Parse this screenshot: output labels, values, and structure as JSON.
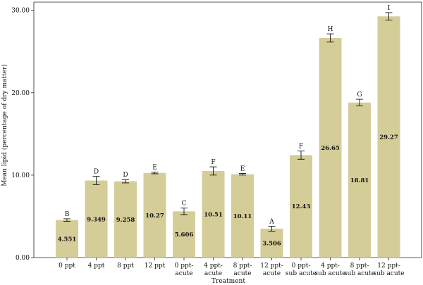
{
  "chart_data": {
    "type": "bar",
    "xlabel": "Treatment",
    "ylabel": "Mean lipid (percentage of dry matter)",
    "ylim": [
      0,
      30
    ],
    "yticks": [
      "0.00",
      "10.00",
      "20.00",
      "30.00"
    ],
    "bar_color": "#d5cd98",
    "grid": false,
    "categories": [
      [
        "0 ppt"
      ],
      [
        "4 ppt"
      ],
      [
        "8 ppt"
      ],
      [
        "12 ppt"
      ],
      [
        "0 ppt-",
        "acute"
      ],
      [
        "4 ppt-",
        "acute"
      ],
      [
        "8 ppt-",
        "acute"
      ],
      [
        "12 ppt-",
        "acute"
      ],
      [
        "0 ppt-",
        "sub acute"
      ],
      [
        "4 ppt-",
        "sub acute"
      ],
      [
        "8 ppt-",
        "sub acute"
      ],
      [
        "12 ppt-",
        "sub acute"
      ]
    ],
    "values": [
      4.551,
      9.349,
      9.258,
      10.27,
      5.606,
      10.51,
      10.11,
      3.506,
      12.43,
      26.65,
      18.81,
      29.27
    ],
    "value_labels": [
      "4.551",
      "9.349",
      "9.258",
      "10.27",
      "5.606",
      "10.51",
      "10.11",
      "3.506",
      "12.43",
      "26.65",
      "18.81",
      "29.27"
    ],
    "errors": [
      0.15,
      0.5,
      0.2,
      0.1,
      0.4,
      0.5,
      0.1,
      0.3,
      0.5,
      0.5,
      0.4,
      0.45
    ],
    "group_letters": [
      "B",
      "D",
      "D",
      "E",
      "C",
      "F",
      "E",
      "A",
      "F",
      "H",
      "G",
      "I"
    ]
  }
}
